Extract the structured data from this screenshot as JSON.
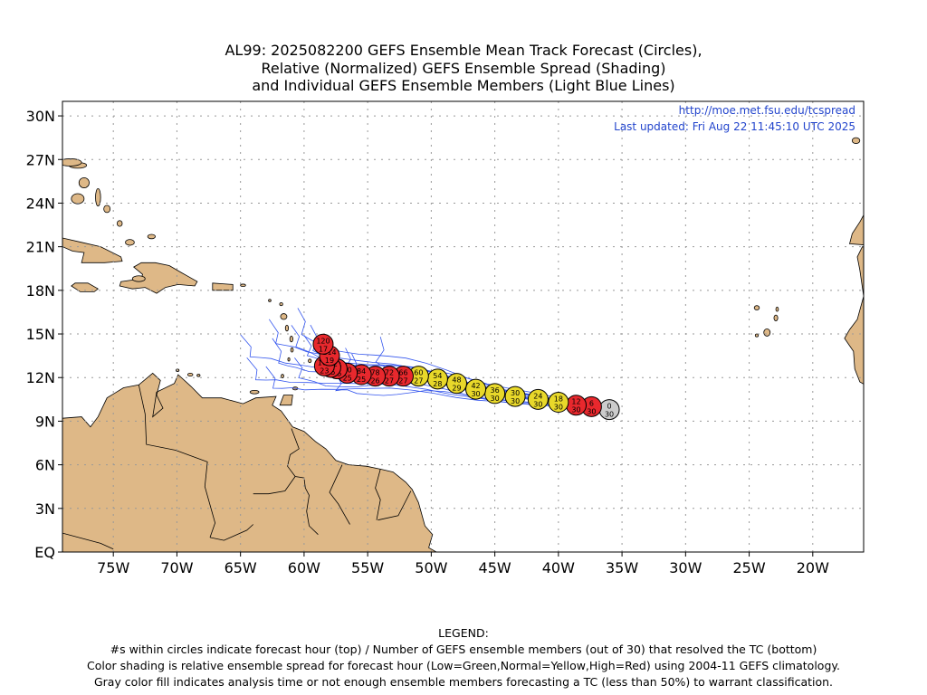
{
  "title": {
    "line1": "AL99: 2025082200 GEFS Ensemble Mean Track Forecast (Circles),",
    "line2": "Relative (Normalized) GEFS Ensemble Spread (Shading)",
    "line3": "and Individual GEFS Ensemble Members (Light Blue Lines)"
  },
  "map": {
    "url_text": "http://moe.met.fsu.edu/tcspread",
    "updated_text": "Last updated: Fri Aug 22 11:45:10 UTC 2025",
    "lon_range": [
      -79,
      -16
    ],
    "lat_range": [
      0,
      31
    ],
    "lat_ticks": [
      {
        "value": 30,
        "label": "30N"
      },
      {
        "value": 27,
        "label": "27N"
      },
      {
        "value": 24,
        "label": "24N"
      },
      {
        "value": 21,
        "label": "21N"
      },
      {
        "value": 18,
        "label": "18N"
      },
      {
        "value": 15,
        "label": "15N"
      },
      {
        "value": 12,
        "label": "12N"
      },
      {
        "value": 9,
        "label": "9N"
      },
      {
        "value": 6,
        "label": "6N"
      },
      {
        "value": 3,
        "label": "3N"
      },
      {
        "value": 0,
        "label": "EQ"
      }
    ],
    "lon_ticks": [
      {
        "value": -75,
        "label": "75W"
      },
      {
        "value": -70,
        "label": "70W"
      },
      {
        "value": -65,
        "label": "65W"
      },
      {
        "value": -60,
        "label": "60W"
      },
      {
        "value": -55,
        "label": "55W"
      },
      {
        "value": -50,
        "label": "50W"
      },
      {
        "value": -45,
        "label": "45W"
      },
      {
        "value": -40,
        "label": "40W"
      },
      {
        "value": -35,
        "label": "35W"
      },
      {
        "value": -30,
        "label": "30W"
      },
      {
        "value": -25,
        "label": "25W"
      },
      {
        "value": -20,
        "label": "20W"
      }
    ],
    "grid": true,
    "land_color": "#deb887",
    "colors": {
      "low": "#00c000",
      "normal": "#e8d82a",
      "high": "#e8282d",
      "gray": "#cccccc",
      "member_line": "#3355ee",
      "url_text": "#2244cc"
    }
  },
  "track": [
    {
      "hour": 0,
      "members": 30,
      "lon": -36.0,
      "lat": 9.8,
      "spread": "gray"
    },
    {
      "hour": 6,
      "members": 30,
      "lon": -37.4,
      "lat": 10.0,
      "spread": "high"
    },
    {
      "hour": 12,
      "members": 30,
      "lon": -38.6,
      "lat": 10.1,
      "spread": "high"
    },
    {
      "hour": 18,
      "members": 30,
      "lon": -40.0,
      "lat": 10.3,
      "spread": "normal"
    },
    {
      "hour": 24,
      "members": 30,
      "lon": -41.6,
      "lat": 10.5,
      "spread": "normal"
    },
    {
      "hour": 30,
      "members": 30,
      "lon": -43.4,
      "lat": 10.7,
      "spread": "normal"
    },
    {
      "hour": 36,
      "members": 30,
      "lon": -45.0,
      "lat": 10.9,
      "spread": "normal"
    },
    {
      "hour": 42,
      "members": 30,
      "lon": -46.5,
      "lat": 11.2,
      "spread": "normal"
    },
    {
      "hour": 48,
      "members": 29,
      "lon": -48.0,
      "lat": 11.6,
      "spread": "normal"
    },
    {
      "hour": 54,
      "members": 28,
      "lon": -49.5,
      "lat": 11.9,
      "spread": "normal"
    },
    {
      "hour": 60,
      "members": 27,
      "lon": -51.0,
      "lat": 12.1,
      "spread": "normal"
    },
    {
      "hour": 66,
      "members": 27,
      "lon": -52.2,
      "lat": 12.1,
      "spread": "high"
    },
    {
      "hour": 72,
      "members": 27,
      "lon": -53.3,
      "lat": 12.1,
      "spread": "high"
    },
    {
      "hour": 78,
      "members": 26,
      "lon": -54.4,
      "lat": 12.1,
      "spread": "high"
    },
    {
      "hour": 84,
      "members": 25,
      "lon": -55.5,
      "lat": 12.2,
      "spread": "high"
    },
    {
      "hour": 90,
      "members": 25,
      "lon": -56.6,
      "lat": 12.3,
      "spread": "high"
    },
    {
      "hour": 96,
      "members": 25,
      "lon": -57.4,
      "lat": 12.6,
      "spread": "high"
    },
    {
      "hour": 102,
      "members": 25,
      "lon": -57.9,
      "lat": 12.7,
      "spread": "high"
    },
    {
      "hour": 108,
      "members": 23,
      "lon": -58.4,
      "lat": 12.8,
      "spread": "high"
    },
    {
      "hour": 114,
      "members": 19,
      "lon": -58.0,
      "lat": 13.5,
      "spread": "high"
    },
    {
      "hour": 120,
      "members": 17,
      "lon": -58.5,
      "lat": 14.3,
      "spread": "high"
    }
  ],
  "legend": {
    "heading": "LEGEND:",
    "line1": "#s within circles indicate forecast hour (top) / Number of GEFS ensemble members (out of 30) that resolved the TC (bottom)",
    "line2": "Color shading is relative ensemble spread for forecast hour (Low=Green,Normal=Yellow,High=Red) using 2004-11 GEFS climatology.",
    "line3": "Gray color fill indicates analysis time or not enough ensemble members forecasting a TC (less than 50%) to warrant classification."
  }
}
